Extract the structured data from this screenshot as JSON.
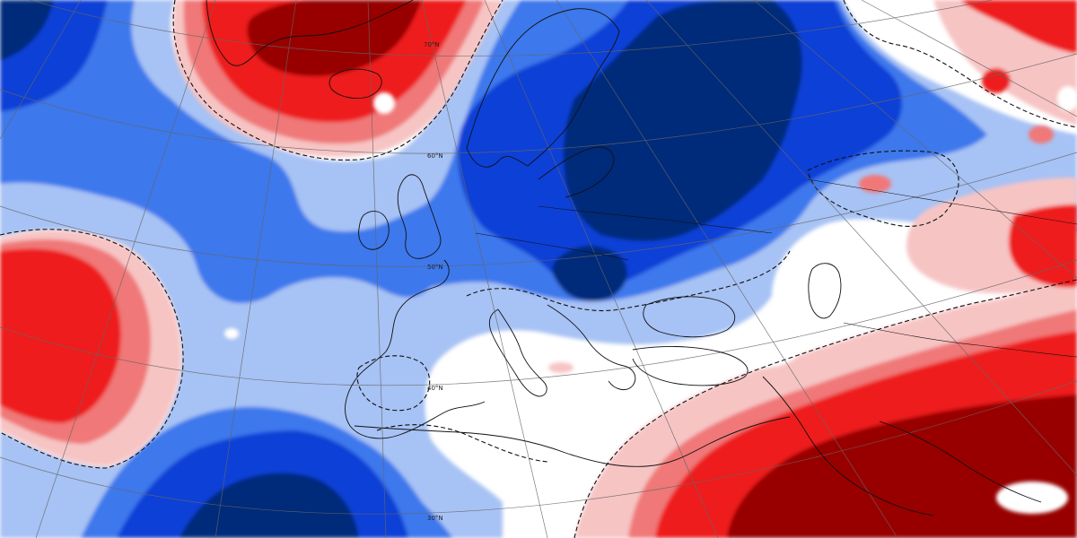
{
  "map": {
    "projection": "polar stereographic",
    "colors": {
      "neg_very_strong": "#002b7a",
      "neg_strong": "#0a3fd6",
      "neg_medium": "#3c78ec",
      "neg_weak": "#a7c2f4",
      "neutral": "#ffffff",
      "pos_weak": "#f7c4c4",
      "pos_medium": "#f07878",
      "pos_strong": "#ee1a1a",
      "pos_very_strong": "#980000",
      "coastline": "#111111",
      "graticule": "#666666",
      "zero_contour": "#111111"
    },
    "latitude_labels": [
      {
        "text": "70°N"
      },
      {
        "text": "60°N"
      },
      {
        "text": "50°N"
      },
      {
        "text": "40°N"
      },
      {
        "text": "30°N"
      }
    ]
  }
}
